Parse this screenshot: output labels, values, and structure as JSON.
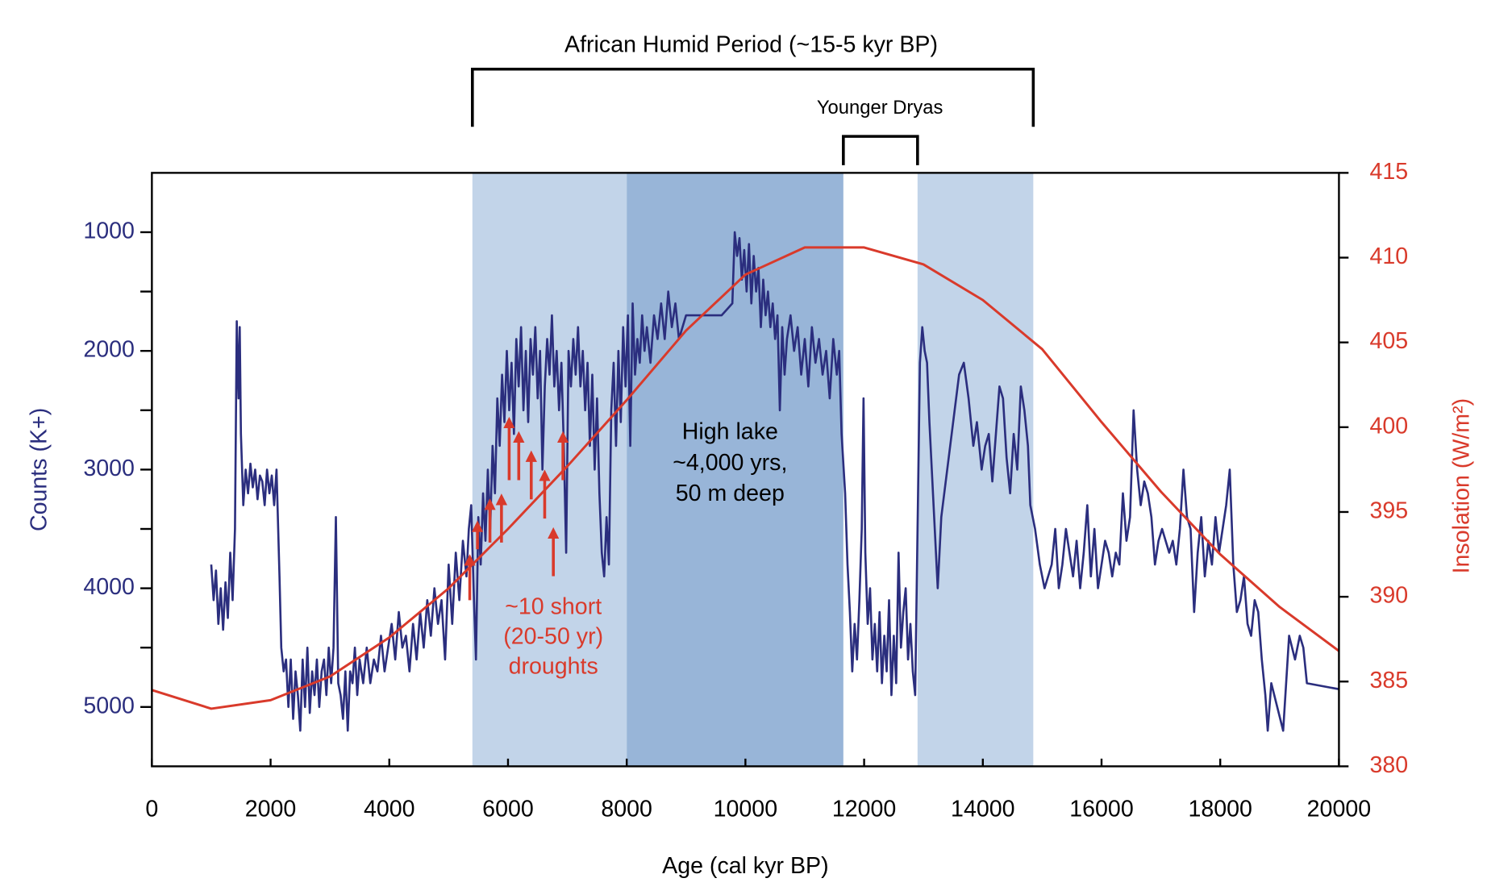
{
  "chart_data": {
    "type": "line",
    "xlabel": "Age (cal kyr BP)",
    "ylabel": "Counts (K+)",
    "y2label": "Insolation (W/m²)",
    "xlim": [
      0,
      20000
    ],
    "xticks": [
      0,
      2000,
      4000,
      6000,
      8000,
      10000,
      12000,
      14000,
      16000,
      18000,
      20000
    ],
    "ylim": [
      5500,
      500
    ],
    "yticks": [
      1000,
      2000,
      3000,
      4000,
      5000
    ],
    "yminorticks": [
      1500,
      2500,
      3500,
      4500
    ],
    "y2lim": [
      380,
      415
    ],
    "y2ticks": [
      380,
      385,
      390,
      395,
      400,
      405,
      410,
      415
    ],
    "shaded_regions": [
      {
        "start": 5400,
        "end": 8000,
        "color": "#c2d4e9"
      },
      {
        "start": 8000,
        "end": 11650,
        "color": "#98b5d8"
      },
      {
        "start": 12900,
        "end": 14850,
        "color": "#c2d4e9"
      }
    ],
    "annotations": {
      "humid_period": "African Humid Period (~15-5 kyr BP)",
      "younger_dryas": "Younger Dryas",
      "high_lake": [
        "High lake",
        "~4,000 yrs,",
        "50 m deep"
      ],
      "droughts": [
        "~10 short",
        "(20-50 yr)",
        "droughts"
      ]
    },
    "series": [
      {
        "color": "#2b2e7e",
        "axis": "y",
        "x": [
          1000,
          1040,
          1080,
          1120,
          1160,
          1200,
          1240,
          1280,
          1320,
          1360,
          1400,
          1430,
          1460,
          1480,
          1500,
          1540,
          1580,
          1620,
          1660,
          1700,
          1740,
          1780,
          1820,
          1860,
          1900,
          1940,
          1980,
          2020,
          2060,
          2100,
          2150,
          2180,
          2220,
          2260,
          2300,
          2340,
          2380,
          2420,
          2460,
          2500,
          2540,
          2580,
          2620,
          2660,
          2700,
          2740,
          2780,
          2820,
          2860,
          2900,
          2940,
          2980,
          3020,
          3060,
          3100,
          3140,
          3180,
          3220,
          3260,
          3300,
          3340,
          3380,
          3420,
          3460,
          3500,
          3560,
          3620,
          3680,
          3740,
          3800,
          3860,
          3920,
          3980,
          4040,
          4100,
          4160,
          4220,
          4280,
          4340,
          4400,
          4460,
          4520,
          4580,
          4640,
          4700,
          4760,
          4820,
          4880,
          4940,
          5000,
          5060,
          5120,
          5180,
          5240,
          5300,
          5340,
          5380,
          5420,
          5460,
          5500,
          5540,
          5580,
          5620,
          5660,
          5700,
          5740,
          5780,
          5820,
          5860,
          5900,
          5940,
          5980,
          6020,
          6060,
          6100,
          6140,
          6180,
          6220,
          6260,
          6300,
          6340,
          6380,
          6420,
          6460,
          6500,
          6540,
          6580,
          6620,
          6660,
          6700,
          6740,
          6780,
          6820,
          6860,
          6900,
          6940,
          6980,
          7020,
          7060,
          7100,
          7140,
          7180,
          7220,
          7260,
          7300,
          7340,
          7380,
          7420,
          7460,
          7500,
          7540,
          7580,
          7620,
          7660,
          7700,
          7740,
          7780,
          7820,
          7860,
          7900,
          7940,
          7980,
          8020,
          8060,
          8100,
          8140,
          8180,
          8220,
          8260,
          8300,
          8340,
          8400,
          8460,
          8520,
          8580,
          8640,
          8700,
          8760,
          8820,
          8880,
          9000,
          9300,
          9600,
          9780,
          9820,
          9860,
          9900,
          9940,
          9980,
          10020,
          10060,
          10100,
          10140,
          10180,
          10220,
          10260,
          10300,
          10340,
          10380,
          10420,
          10460,
          10500,
          10540,
          10580,
          10620,
          10660,
          10700,
          10760,
          10820,
          10880,
          10940,
          11000,
          11060,
          11120,
          11180,
          11240,
          11300,
          11360,
          11420,
          11480,
          11540,
          11580,
          11620,
          11680,
          11720,
          11760,
          11800,
          11840,
          11880,
          11920,
          11960,
          11990,
          12020,
          12060,
          12100,
          12140,
          12180,
          12220,
          12260,
          12300,
          12340,
          12380,
          12420,
          12460,
          12500,
          12540,
          12580,
          12620,
          12660,
          12700,
          12740,
          12780,
          12820,
          12860,
          12900,
          12940,
          12980,
          13020,
          13060,
          13100,
          13140,
          13180,
          13240,
          13300,
          13400,
          13500,
          13600,
          13680,
          13760,
          13840,
          13900,
          13980,
          14040,
          14100,
          14160,
          14220,
          14280,
          14340,
          14400,
          14460,
          14520,
          14580,
          14640,
          14700,
          14760,
          14800,
          14880,
          14960,
          15040,
          15100,
          15160,
          15220,
          15280,
          15340,
          15400,
          15460,
          15520,
          15580,
          15640,
          15700,
          15760,
          15820,
          15880,
          15940,
          16000,
          16060,
          16120,
          16180,
          16240,
          16300,
          16360,
          16420,
          16480,
          16540,
          16600,
          16660,
          16720,
          16780,
          16840,
          16900,
          16960,
          17020,
          17080,
          17140,
          17200,
          17260,
          17320,
          17380,
          17440,
          17500,
          17560,
          17620,
          17680,
          17740,
          17800,
          17860,
          17920,
          17980,
          18040,
          18100,
          18160,
          18220,
          18280,
          18340,
          18400,
          18460,
          18520,
          18580,
          18640,
          18700,
          18760,
          18800,
          18860,
          18960,
          19060,
          19160,
          19260,
          19340,
          19400,
          19460,
          20000
        ],
        "values": [
          3800,
          4100,
          3850,
          4300,
          4000,
          4350,
          3950,
          4250,
          3700,
          4100,
          3500,
          1750,
          2400,
          1800,
          2700,
          3300,
          3000,
          3200,
          2950,
          3150,
          3000,
          3250,
          3050,
          3100,
          3300,
          3000,
          3200,
          3050,
          3300,
          3000,
          3900,
          4500,
          4700,
          4600,
          5000,
          4600,
          5100,
          4700,
          4900,
          5200,
          4600,
          5000,
          4500,
          5050,
          4700,
          4900,
          4600,
          5000,
          4700,
          4600,
          4900,
          4500,
          4800,
          4500,
          3400,
          4800,
          4900,
          5100,
          4700,
          5200,
          4700,
          4800,
          4500,
          4900,
          4600,
          4800,
          4500,
          4800,
          4600,
          4700,
          4400,
          4700,
          4500,
          4300,
          4600,
          4200,
          4500,
          4400,
          4700,
          4300,
          4600,
          4200,
          4500,
          4100,
          4400,
          4000,
          4300,
          4100,
          4600,
          3800,
          4300,
          3700,
          4100,
          3600,
          3900,
          3500,
          3300,
          4000,
          4600,
          3400,
          3800,
          3200,
          3600,
          3000,
          3500,
          2800,
          3200,
          2400,
          2800,
          2200,
          2600,
          2000,
          2500,
          2100,
          2700,
          1900,
          2300,
          1800,
          2500,
          2000,
          2600,
          1900,
          2200,
          1800,
          2400,
          2000,
          3000,
          2300,
          1900,
          2200,
          1700,
          2300,
          2000,
          2500,
          2100,
          2800,
          3700,
          2000,
          2300,
          1900,
          2200,
          1800,
          2300,
          2000,
          2500,
          2100,
          2800,
          2200,
          3000,
          2400,
          3200,
          3700,
          3900,
          3400,
          3800,
          2500,
          2100,
          2800,
          2000,
          2600,
          1800,
          2300,
          1700,
          2800,
          1600,
          2200,
          1900,
          2100,
          1700,
          2000,
          1800,
          2100,
          1700,
          1900,
          1600,
          1900,
          1500,
          1800,
          1600,
          1900,
          1700,
          1700,
          1700,
          1600,
          1000,
          1200,
          1050,
          1400,
          1150,
          1500,
          1100,
          1600,
          1200,
          1500,
          1300,
          1800,
          1400,
          1700,
          1500,
          1800,
          1600,
          1900,
          1700,
          2500,
          1800,
          2200,
          1900,
          1700,
          2000,
          1800,
          2200,
          1900,
          2300,
          1800,
          2100,
          1900,
          2200,
          2000,
          2400,
          1900,
          2200,
          2000,
          2700,
          3200,
          3800,
          4200,
          4700,
          4300,
          4600,
          4100,
          3500,
          2400,
          3700,
          4300,
          4000,
          4600,
          4300,
          4700,
          4200,
          4800,
          4400,
          4700,
          4100,
          4900,
          4400,
          4800,
          3700,
          4500,
          4200,
          4000,
          4600,
          4300,
          4700,
          4900,
          3500,
          2100,
          1800,
          2000,
          2100,
          2600,
          3000,
          3400,
          4000,
          3400,
          3000,
          2600,
          2200,
          2100,
          2400,
          2800,
          2600,
          3000,
          2800,
          2700,
          3100,
          2700,
          2300,
          2400,
          2900,
          3200,
          2700,
          3000,
          2300,
          2500,
          2800,
          3300,
          3500,
          3800,
          4000,
          3900,
          3800,
          3500,
          4000,
          3800,
          3500,
          3700,
          3900,
          3600,
          4000,
          3700,
          3300,
          3900,
          3500,
          4000,
          3800,
          3600,
          3700,
          3900,
          3700,
          3800,
          3200,
          3600,
          3400,
          2500,
          3000,
          3300,
          3100,
          3200,
          3400,
          3800,
          3600,
          3500,
          3600,
          3700,
          3600,
          3800,
          3500,
          3000,
          3400,
          3500,
          4200,
          3700,
          3400,
          3900,
          3600,
          3800,
          3400,
          3700,
          3500,
          3300,
          3000,
          3800,
          4200,
          4100,
          3900,
          4300,
          4400,
          4100,
          4200,
          4600,
          4900,
          5200,
          4800,
          5000,
          5200,
          4400,
          4600,
          4400,
          4500,
          4800,
          4850
        ]
      },
      {
        "color": "#d93a2b",
        "axis": "y2",
        "x": [
          0,
          1000,
          2000,
          3000,
          4000,
          5000,
          6000,
          7000,
          8000,
          9000,
          10000,
          11000,
          12000,
          13000,
          14000,
          15000,
          16000,
          17000,
          18000,
          19000,
          20000
        ],
        "values": [
          384.5,
          383.4,
          383.9,
          385.3,
          387.6,
          390.5,
          394,
          397.7,
          401.6,
          405.7,
          409,
          410.6,
          410.6,
          409.6,
          407.5,
          404.6,
          400.3,
          396.2,
          392.5,
          389.4,
          386.8
        ]
      }
    ]
  }
}
